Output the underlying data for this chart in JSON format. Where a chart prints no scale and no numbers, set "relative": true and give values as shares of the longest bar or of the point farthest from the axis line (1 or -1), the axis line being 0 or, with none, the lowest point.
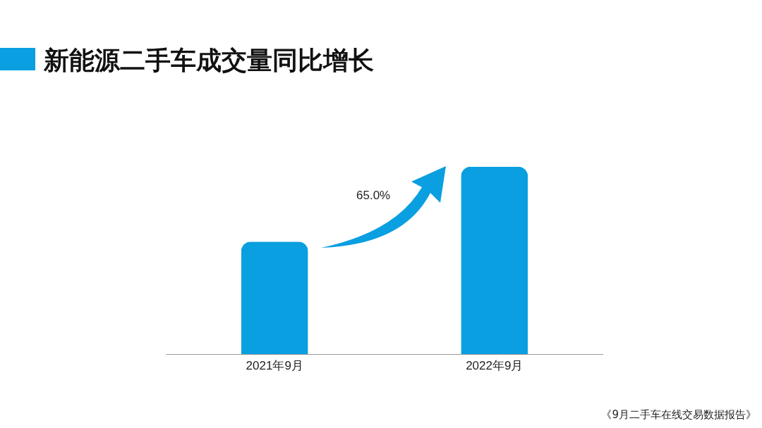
{
  "chart_data": {
    "type": "bar",
    "title": "新能源二手车成交量同比增长",
    "relative": true,
    "categories": [
      "2021年9月",
      "2022年9月"
    ],
    "values": [
      0.6,
      1
    ],
    "color": "#0a9fe0",
    "annotations": [
      "65.0%",
      "《9月二手车在线交易数据报告》"
    ]
  }
}
